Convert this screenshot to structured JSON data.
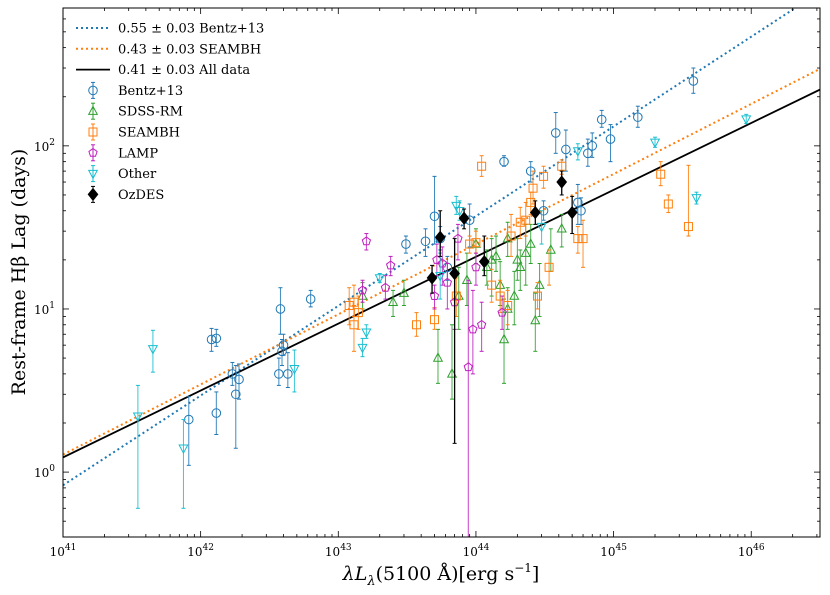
{
  "chart_data": {
    "type": "scatter",
    "scale": "log-log",
    "xlabel": "λL_λ(5100 Å)[erg s⁻¹]",
    "xlabel_parts": {
      "lambda": "λ",
      "L": "L",
      "sub": "λ",
      "mid": "(5100 Å)[erg s",
      "sup": "−1",
      "end": "]"
    },
    "ylabel": "Rest-frame Hβ Lag (days)",
    "xlim": [
      1e+41,
      3.16e+46
    ],
    "ylim": [
      0.4,
      700
    ],
    "x_ticks": [
      {
        "value": 1e+41,
        "base": "10",
        "exp": "41"
      },
      {
        "value": 1e+42,
        "base": "10",
        "exp": "42"
      },
      {
        "value": 1e+43,
        "base": "10",
        "exp": "43"
      },
      {
        "value": 1e+44,
        "base": "10",
        "exp": "44"
      },
      {
        "value": 1e+45,
        "base": "10",
        "exp": "45"
      },
      {
        "value": 1e+46,
        "base": "10",
        "exp": "46"
      }
    ],
    "y_ticks": [
      {
        "value": 1,
        "base": "10",
        "exp": "0"
      },
      {
        "value": 10,
        "base": "10",
        "exp": "1"
      },
      {
        "value": 100,
        "base": "10",
        "exp": "2"
      }
    ],
    "fits": [
      {
        "label": "0.55 ± 0.03 Bentz+13",
        "color": "#1f77b4",
        "style": "dotted",
        "slope": 0.55,
        "x0": 1e+41,
        "y0": 0.83
      },
      {
        "label": "0.43 ± 0.03 SEAMBH",
        "color": "#ff7f0e",
        "style": "dotted",
        "slope": 0.43,
        "x0": 1e+41,
        "y0": 1.28
      },
      {
        "label": "0.41 ± 0.03 All data",
        "color": "#000000",
        "style": "solid",
        "slope": 0.41,
        "x0": 1e+41,
        "y0": 1.23
      }
    ],
    "series": [
      {
        "name": "Bentz+13",
        "color": "#1f77b4",
        "marker": "circle",
        "points": [
          [
            1.2e+42,
            6.5,
            5.5,
            7.6
          ],
          [
            1.3e+42,
            6.6,
            5.9,
            7.5
          ],
          [
            1.3e+42,
            2.3,
            1.7,
            3.1
          ],
          [
            1.7e+42,
            4.0,
            3.4,
            4.7
          ],
          [
            1.8e+42,
            3.0,
            1.4,
            4.5
          ],
          [
            1.9e+42,
            3.7,
            2.8,
            4.6
          ],
          [
            8.2e+41,
            2.1,
            1.1,
            2.9
          ],
          [
            3.7e+42,
            4.0,
            3.4,
            5.0
          ],
          [
            3.8e+42,
            10.0,
            7.0,
            13.5
          ],
          [
            3.9e+42,
            5.5,
            4.5,
            6.5
          ],
          [
            4e+42,
            6.0,
            5.2,
            7.0
          ],
          [
            4.3e+42,
            4.0,
            3.3,
            5.4
          ],
          [
            6.3e+42,
            11.5,
            10.3,
            13.0
          ],
          [
            3.1e+43,
            25.0,
            22.0,
            28.0
          ],
          [
            4.3e+43,
            26.0,
            21.0,
            31.0
          ],
          [
            5e+43,
            37.0,
            25.0,
            65.0
          ],
          [
            5.5e+43,
            27.0,
            23.0,
            32.0
          ],
          [
            6.2e+43,
            18.0,
            15.0,
            21.0
          ],
          [
            9e+43,
            35.0,
            24.0,
            44.0
          ],
          [
            1.6e+44,
            80.0,
            75.0,
            87.0
          ],
          [
            2.5e+44,
            70.0,
            60.0,
            80.0
          ],
          [
            3.1e+44,
            40.0,
            35.0,
            46.0
          ],
          [
            3.8e+44,
            120.0,
            90.0,
            160.0
          ],
          [
            4.5e+44,
            95.0,
            70.0,
            125.0
          ],
          [
            5.5e+44,
            45.0,
            33.0,
            58.0
          ],
          [
            5.8e+44,
            40.0,
            33.0,
            48.0
          ],
          [
            6.5e+44,
            90.0,
            75.0,
            110.0
          ],
          [
            7e+44,
            100.0,
            85.0,
            120.0
          ],
          [
            8.2e+44,
            145.0,
            130.0,
            165.0
          ],
          [
            9.5e+44,
            110.0,
            80.0,
            135.0
          ],
          [
            1.5e+45,
            150.0,
            130.0,
            175.0
          ],
          [
            3.8e+45,
            250.0,
            210.0,
            300.0
          ]
        ]
      },
      {
        "name": "SDSS-RM",
        "color": "#2ca02c",
        "marker": "triangle-up",
        "points": [
          [
            1.5e+43,
            12.0,
            10.0,
            14.5
          ],
          [
            2.5e+43,
            11.0,
            9.0,
            13.0
          ],
          [
            3e+43,
            12.5,
            10.5,
            15.0
          ],
          [
            5.3e+43,
            5.0,
            3.5,
            7.5
          ],
          [
            6.7e+43,
            4.0,
            2.8,
            8.0
          ],
          [
            7.5e+43,
            12.0,
            7.5,
            18.0
          ],
          [
            8.6e+43,
            15.0,
            10.5,
            22.0
          ],
          [
            1e+44,
            25.0,
            19.0,
            31.0
          ],
          [
            1.2e+44,
            18.0,
            14.0,
            23.0
          ],
          [
            1.3e+44,
            20.0,
            12.0,
            27.0
          ],
          [
            1.4e+44,
            21.0,
            17.0,
            28.0
          ],
          [
            1.5e+44,
            14.0,
            10.5,
            19.5
          ],
          [
            1.6e+44,
            6.5,
            3.5,
            11.5
          ],
          [
            1.7e+44,
            10.0,
            7.5,
            13.5
          ],
          [
            1.9e+44,
            12.0,
            8.0,
            17.0
          ],
          [
            2e+44,
            20.0,
            15.0,
            27.0
          ],
          [
            2.1e+44,
            18.0,
            13.0,
            23.0
          ],
          [
            2.3e+44,
            22.0,
            14.0,
            33.0
          ],
          [
            2.5e+44,
            25.0,
            19.0,
            33.0
          ],
          [
            2.7e+44,
            8.5,
            5.5,
            12.5
          ],
          [
            2.9e+44,
            14.0,
            9.0,
            19.0
          ],
          [
            3.5e+44,
            23.0,
            17.0,
            31.0
          ],
          [
            4.2e+44,
            31.0,
            24.0,
            38.0
          ],
          [
            1.7e+44,
            27.0,
            21.0,
            34.0
          ]
        ]
      },
      {
        "name": "SEAMBH",
        "color": "#ff7f0e",
        "marker": "square",
        "points": [
          [
            1.2e+43,
            10.5,
            8.0,
            13.5
          ],
          [
            1.3e+43,
            11.0,
            9.0,
            14.0
          ],
          [
            1.3e+43,
            8.0,
            5.5,
            10.5
          ],
          [
            1.4e+43,
            9.5,
            7.5,
            12.0
          ],
          [
            3.7e+43,
            8.0,
            6.8,
            9.5
          ],
          [
            5e+43,
            8.6,
            7.5,
            10.2
          ],
          [
            7.2e+43,
            12.0,
            9.0,
            15.5
          ],
          [
            9e+43,
            25.0,
            22.0,
            28.0
          ],
          [
            1e+44,
            25.5,
            22.0,
            30.0
          ],
          [
            1.1e+44,
            75.0,
            65.0,
            87.0
          ],
          [
            1.3e+44,
            14.0,
            11.0,
            17.5
          ],
          [
            1.5e+44,
            12.0,
            9.5,
            15.0
          ],
          [
            1.8e+44,
            28.0,
            21.0,
            38.0
          ],
          [
            2.1e+44,
            34.0,
            27.0,
            42.0
          ],
          [
            2.3e+44,
            35.0,
            28.0,
            45.0
          ],
          [
            2.5e+44,
            45.0,
            38.0,
            52.0
          ],
          [
            2.6e+44,
            55.0,
            44.0,
            70.0
          ],
          [
            2.8e+44,
            12.0,
            10.0,
            14.5
          ],
          [
            3.1e+44,
            65.0,
            55.0,
            75.0
          ],
          [
            3.4e+44,
            18.0,
            14.0,
            23.0
          ],
          [
            4.2e+44,
            75.0,
            67.0,
            82.0
          ],
          [
            5.5e+44,
            27.0,
            22.0,
            32.0
          ],
          [
            6e+44,
            27.0,
            18.0,
            35.0
          ],
          [
            2.2e+45,
            67.0,
            57.0,
            80.0
          ],
          [
            2.5e+45,
            44.0,
            39.0,
            50.0
          ],
          [
            3.5e+45,
            32.0,
            28.0,
            76.0
          ],
          [
            1.7e+44,
            10.5,
            8.0,
            13.0
          ]
        ]
      },
      {
        "name": "LAMP",
        "color": "#bf1fbf",
        "marker": "pentagon",
        "points": [
          [
            1.5e+43,
            13.0,
            11.0,
            15.0
          ],
          [
            1.6e+43,
            26.0,
            23.0,
            29.0
          ],
          [
            2.2e+43,
            13.5,
            11.5,
            16.0
          ],
          [
            2.4e+43,
            18.5,
            16.0,
            21.0
          ],
          [
            5e+43,
            12.0,
            10.0,
            14.0
          ],
          [
            5.2e+43,
            20.0,
            16.0,
            25.0
          ],
          [
            5.7e+43,
            19.0,
            14.0,
            24.0
          ],
          [
            6.2e+43,
            14.5,
            10.0,
            19.0
          ],
          [
            7e+43,
            11.0,
            7.5,
            17.0
          ],
          [
            7.4e+43,
            27.0,
            20.0,
            33.0
          ],
          [
            8.8e+43,
            4.4,
            0.4,
            15.0
          ],
          [
            9.5e+43,
            7.5,
            4.0,
            13.0
          ],
          [
            1e+44,
            18.0,
            14.0,
            22.0
          ],
          [
            1.1e+44,
            8.0,
            5.5,
            11.0
          ],
          [
            1.55e+44,
            9.5,
            7.5,
            12.0
          ]
        ]
      },
      {
        "name": "Other",
        "color": "#17becf",
        "marker": "triangle-down",
        "points": [
          [
            3.5e+41,
            2.2,
            0.6,
            3.4
          ],
          [
            4.5e+41,
            5.7,
            4.1,
            7.4
          ],
          [
            7.5e+41,
            1.4,
            0.6,
            2.1
          ],
          [
            4.8e+42,
            4.3,
            3.1,
            5.6
          ],
          [
            1.5e+43,
            5.8,
            5.1,
            6.6
          ],
          [
            1.6e+43,
            7.2,
            6.6,
            8.0
          ],
          [
            2e+43,
            15.5,
            14.5,
            16.5
          ],
          [
            5.5e+43,
            16.0,
            11.5,
            22.0
          ],
          [
            7.2e+43,
            43.0,
            38.0,
            49.0
          ],
          [
            7.6e+43,
            40.0,
            35.0,
            46.0
          ],
          [
            3e+44,
            32.0,
            25.0,
            40.0
          ],
          [
            5.5e+44,
            93.0,
            82.0,
            103.0
          ],
          [
            2e+45,
            105.0,
            98.0,
            113.0
          ],
          [
            4e+45,
            48.0,
            44.0,
            52.0
          ],
          [
            9.2e+45,
            146.0,
            137.0,
            156.0
          ]
        ]
      },
      {
        "name": "OzDES",
        "color": "#000000",
        "marker": "diamond",
        "points": [
          [
            4.8e+43,
            15.5,
            12.5,
            18.5
          ],
          [
            5.5e+43,
            27.5,
            21.0,
            40.0
          ],
          [
            7e+43,
            16.5,
            1.5,
            27.0
          ],
          [
            8.2e+43,
            36.0,
            31.0,
            41.0
          ],
          [
            1.15e+44,
            19.5,
            16.0,
            28.0
          ],
          [
            2.7e+44,
            39.0,
            33.0,
            46.0
          ],
          [
            4.2e+44,
            60.0,
            50.0,
            70.0
          ],
          [
            5e+44,
            39.0,
            29.0,
            49.0
          ]
        ]
      }
    ]
  }
}
